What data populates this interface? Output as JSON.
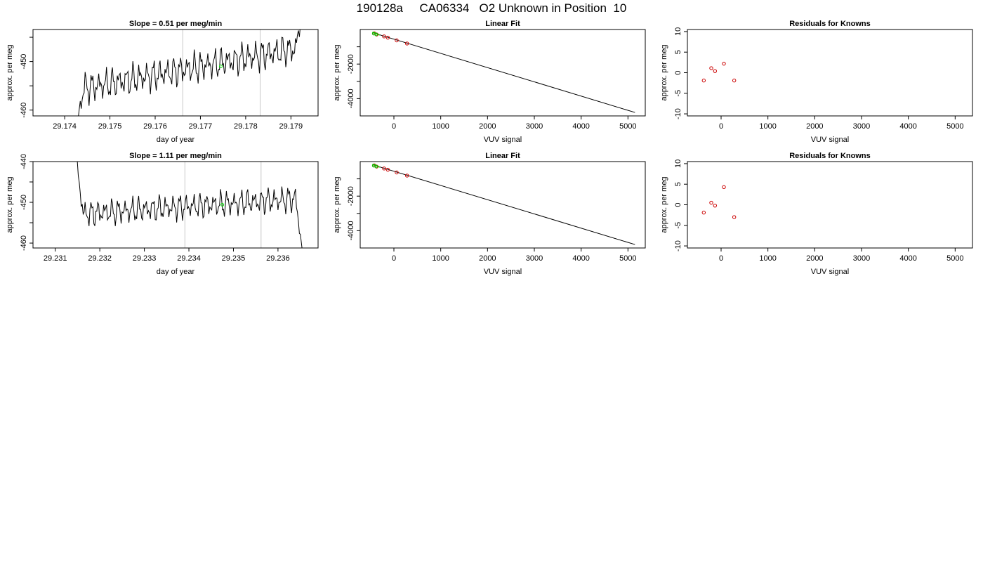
{
  "page_title": "190128a     CA06334   O2 Unknown in Position  10",
  "chart_data": [
    {
      "id": "time-1",
      "type": "line",
      "title": "Slope =  0.51  per meg/min",
      "xlabel": "day of year",
      "ylabel": "approx. per meg",
      "xlim": [
        29.1733,
        29.1796
      ],
      "ylim": [
        -461.2,
        -443.4
      ],
      "xticks": [
        {
          "v": 29.174,
          "label": "29.174"
        },
        {
          "v": 29.175,
          "label": "29.175"
        },
        {
          "v": 29.176,
          "label": "29.176"
        },
        {
          "v": 29.177,
          "label": "29.177"
        },
        {
          "v": 29.178,
          "label": "29.178"
        },
        {
          "v": 29.179,
          "label": "29.179"
        }
      ],
      "yticks": [
        {
          "v": -460,
          "label": "-460"
        },
        {
          "v": -455,
          "label": ""
        },
        {
          "v": -450,
          "label": "-450"
        },
        {
          "v": -445,
          "label": ""
        }
      ],
      "vlines": [
        29.17661,
        29.17832
      ],
      "series": [
        {
          "color": "#000000",
          "x": [],
          "y": []
        }
      ],
      "markers": [
        {
          "x": 29.17745,
          "y": -451.0,
          "color": "#00dd00"
        }
      ]
    },
    {
      "id": "fit-1",
      "type": "scatter",
      "title": "Linear Fit",
      "xlabel": "VUV signal",
      "ylabel": "approx. per meg",
      "xlim": [
        -720,
        5370
      ],
      "ylim": [
        -5000,
        0
      ],
      "xticks": [
        {
          "v": 0,
          "label": "0"
        },
        {
          "v": 1000,
          "label": "1000"
        },
        {
          "v": 2000,
          "label": "2000"
        },
        {
          "v": 3000,
          "label": "3000"
        },
        {
          "v": 4000,
          "label": "4000"
        },
        {
          "v": 5000,
          "label": "5000"
        }
      ],
      "yticks": [
        {
          "v": -1000,
          "label": ""
        },
        {
          "v": -2000,
          "label": "-2000"
        },
        {
          "v": -3000,
          "label": ""
        },
        {
          "v": -4000,
          "label": "-4000"
        }
      ],
      "fit_line": {
        "x": [
          -460,
          5150
        ],
        "y": [
          -180,
          -4800
        ]
      },
      "points": {
        "color": "#cc0000",
        "x": [
          -420,
          -370,
          -210,
          -130,
          60,
          280
        ],
        "y": [
          -220,
          -290,
          -400,
          -470,
          -630,
          -810
        ]
      },
      "green_markers": [
        {
          "x": -430,
          "y": -240
        },
        {
          "x": -380,
          "y": -280
        }
      ],
      "green_segment": {
        "x": [
          -460,
          -300
        ],
        "y": [
          -160,
          -320
        ]
      }
    },
    {
      "id": "resid-1",
      "type": "scatter",
      "title": "Residuals for Knowns",
      "xlabel": "VUV signal",
      "ylabel": "approx. per meg",
      "xlim": [
        -720,
        5370
      ],
      "ylim": [
        -10.5,
        10.5
      ],
      "xticks": [
        {
          "v": 0,
          "label": "0"
        },
        {
          "v": 1000,
          "label": "1000"
        },
        {
          "v": 2000,
          "label": "2000"
        },
        {
          "v": 3000,
          "label": "3000"
        },
        {
          "v": 4000,
          "label": "4000"
        },
        {
          "v": 5000,
          "label": "5000"
        }
      ],
      "yticks": [
        {
          "v": -10,
          "label": "-10"
        },
        {
          "v": -5,
          "label": "-5"
        },
        {
          "v": 0,
          "label": "0"
        },
        {
          "v": 5,
          "label": "5"
        },
        {
          "v": 10,
          "label": "10"
        }
      ],
      "points": {
        "color": "#cc0000",
        "x": [
          -370,
          -210,
          -130,
          60,
          280
        ],
        "y": [
          -1.9,
          1.1,
          0.4,
          2.2,
          -1.9
        ]
      }
    },
    {
      "id": "time-2",
      "type": "line",
      "title": "Slope =  1.11  per meg/min",
      "xlabel": "day of year",
      "ylabel": "approx. per meg",
      "xlim": [
        29.2305,
        29.2369
      ],
      "ylim": [
        -461.2,
        -440.0
      ],
      "xticks": [
        {
          "v": 29.231,
          "label": "29.231"
        },
        {
          "v": 29.232,
          "label": "29.232"
        },
        {
          "v": 29.233,
          "label": "29.233"
        },
        {
          "v": 29.234,
          "label": "29.234"
        },
        {
          "v": 29.235,
          "label": "29.235"
        },
        {
          "v": 29.236,
          "label": "29.236"
        }
      ],
      "yticks": [
        {
          "v": -460,
          "label": "-460"
        },
        {
          "v": -455,
          "label": ""
        },
        {
          "v": -450,
          "label": "-450"
        },
        {
          "v": -445,
          "label": ""
        },
        {
          "v": -440,
          "label": "-440"
        }
      ],
      "vlines": [
        29.23391,
        29.23562
      ],
      "series": [
        {
          "color": "#000000",
          "x": [],
          "y": []
        }
      ],
      "markers": [
        {
          "x": 29.23475,
          "y": -450.6,
          "color": "#00dd00"
        }
      ]
    },
    {
      "id": "fit-2",
      "type": "scatter",
      "title": "Linear Fit",
      "xlabel": "VUV signal",
      "ylabel": "approx. per meg",
      "xlim": [
        -720,
        5370
      ],
      "ylim": [
        -5000,
        0
      ],
      "xticks": [
        {
          "v": 0,
          "label": "0"
        },
        {
          "v": 1000,
          "label": "1000"
        },
        {
          "v": 2000,
          "label": "2000"
        },
        {
          "v": 3000,
          "label": "3000"
        },
        {
          "v": 4000,
          "label": "4000"
        },
        {
          "v": 5000,
          "label": "5000"
        }
      ],
      "yticks": [
        {
          "v": -1000,
          "label": ""
        },
        {
          "v": -2000,
          "label": "-2000"
        },
        {
          "v": -3000,
          "label": ""
        },
        {
          "v": -4000,
          "label": "-4000"
        }
      ],
      "fit_line": {
        "x": [
          -460,
          5150
        ],
        "y": [
          -180,
          -4800
        ]
      },
      "points": {
        "color": "#cc0000",
        "x": [
          -420,
          -370,
          -210,
          -130,
          60,
          280
        ],
        "y": [
          -220,
          -290,
          -400,
          -470,
          -630,
          -810
        ]
      },
      "green_markers": [
        {
          "x": -430,
          "y": -240
        },
        {
          "x": -380,
          "y": -280
        }
      ],
      "green_segment": {
        "x": [
          -460,
          -300
        ],
        "y": [
          -160,
          -320
        ]
      }
    },
    {
      "id": "resid-2",
      "type": "scatter",
      "title": "Residuals for Knowns",
      "xlabel": "VUV signal",
      "ylabel": "approx. per meg",
      "xlim": [
        -720,
        5370
      ],
      "ylim": [
        -10.5,
        10.5
      ],
      "xticks": [
        {
          "v": 0,
          "label": "0"
        },
        {
          "v": 1000,
          "label": "1000"
        },
        {
          "v": 2000,
          "label": "2000"
        },
        {
          "v": 3000,
          "label": "3000"
        },
        {
          "v": 4000,
          "label": "4000"
        },
        {
          "v": 5000,
          "label": "5000"
        }
      ],
      "yticks": [
        {
          "v": -10,
          "label": "-10"
        },
        {
          "v": -5,
          "label": "-5"
        },
        {
          "v": 0,
          "label": "0"
        },
        {
          "v": 5,
          "label": "5"
        },
        {
          "v": 10,
          "label": "10"
        }
      ],
      "points": {
        "color": "#cc0000",
        "x": [
          -370,
          -210,
          -130,
          60,
          280
        ],
        "y": [
          -1.9,
          0.5,
          -0.2,
          4.3,
          -3.0
        ]
      }
    }
  ]
}
